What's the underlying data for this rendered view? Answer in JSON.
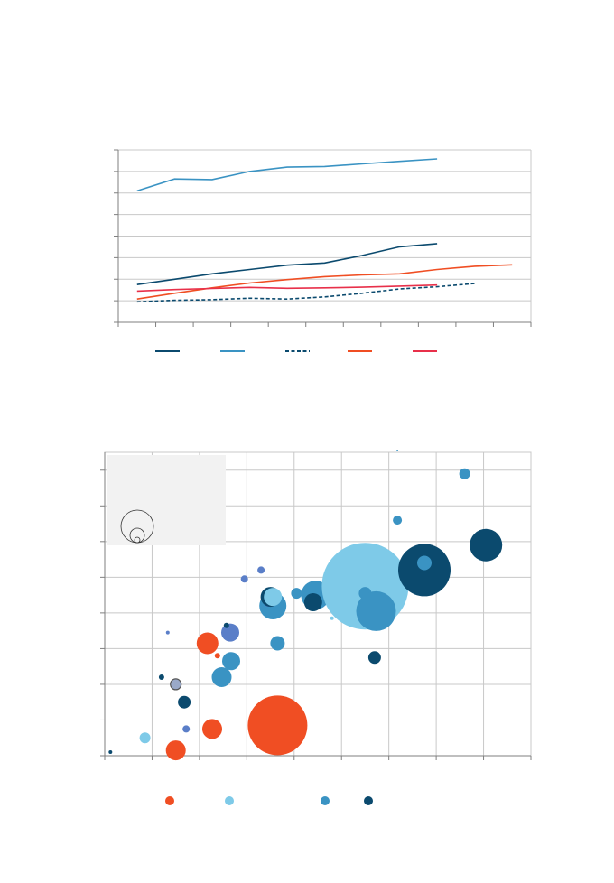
{
  "colors": {
    "navy": "#0b4a6e",
    "teal": "#3a93c3",
    "sky": "#7ecae8",
    "blue": "#5a7ec8",
    "orange": "#f04e23",
    "red": "#e8304a",
    "grid": "#c8c8c8",
    "axis": "#7f7f7f",
    "inset_bg": "#f2f2f2"
  },
  "chart_data": [
    {
      "type": "line",
      "title": "",
      "xlabel": "",
      "ylabel": "",
      "x": [
        0,
        1,
        2,
        3,
        4,
        5,
        6,
        7,
        8,
        9,
        10
      ],
      "xlim": [
        -0.5,
        10.5
      ],
      "ylim": [
        0,
        8
      ],
      "grid": true,
      "legend_position": "bottom",
      "series": [
        {
          "color": "navy",
          "dash": false,
          "values": [
            1.75,
            2.0,
            2.25,
            2.45,
            2.65,
            2.75,
            3.1,
            3.5,
            3.65,
            null,
            null
          ]
        },
        {
          "color": "teal",
          "dash": false,
          "values": [
            6.1,
            6.65,
            6.62,
            7.0,
            7.2,
            7.23,
            7.35,
            7.47,
            7.58,
            null,
            null
          ]
        },
        {
          "color": "navy",
          "dash": true,
          "values": [
            0.95,
            1.02,
            1.05,
            1.12,
            1.08,
            1.18,
            1.35,
            1.55,
            1.65,
            1.8,
            null
          ]
        },
        {
          "color": "orange",
          "dash": false,
          "values": [
            1.08,
            1.35,
            1.6,
            1.82,
            1.98,
            2.12,
            2.2,
            2.25,
            2.45,
            2.6,
            2.67
          ]
        },
        {
          "color": "red",
          "dash": false,
          "values": [
            1.45,
            1.52,
            1.57,
            1.62,
            1.58,
            1.6,
            1.63,
            1.68,
            1.73,
            null,
            null
          ]
        }
      ]
    },
    {
      "type": "scatter",
      "title": "",
      "xlabel": "",
      "ylabel": "",
      "xlim": [
        0,
        9
      ],
      "ylim": [
        0,
        8.5
      ],
      "grid": true,
      "legend_position": "bottom",
      "size_legend": [
        3,
        8,
        18
      ],
      "points": [
        {
          "x": 0.12,
          "y": 0.1,
          "r": 2,
          "color": "navy"
        },
        {
          "x": 0.85,
          "y": 0.5,
          "r": 6,
          "color": "sky"
        },
        {
          "x": 1.5,
          "y": 0.15,
          "r": 11,
          "color": "orange"
        },
        {
          "x": 1.72,
          "y": 0.75,
          "r": 4,
          "color": "blue"
        },
        {
          "x": 2.27,
          "y": 0.75,
          "r": 11,
          "color": "orange"
        },
        {
          "x": 3.65,
          "y": 0.85,
          "r": 33,
          "color": "orange"
        },
        {
          "x": 1.68,
          "y": 1.5,
          "r": 7,
          "color": "navy"
        },
        {
          "x": 1.5,
          "y": 2.0,
          "r": 6,
          "color": "navy",
          "outline": true
        },
        {
          "x": 1.2,
          "y": 2.2,
          "r": 3,
          "color": "navy"
        },
        {
          "x": 2.47,
          "y": 2.2,
          "r": 11,
          "color": "teal"
        },
        {
          "x": 2.67,
          "y": 2.65,
          "r": 10,
          "color": "teal"
        },
        {
          "x": 2.38,
          "y": 2.8,
          "r": 3,
          "color": "orange"
        },
        {
          "x": 2.17,
          "y": 3.15,
          "r": 12,
          "color": "orange"
        },
        {
          "x": 1.33,
          "y": 3.45,
          "r": 2,
          "color": "blue"
        },
        {
          "x": 2.65,
          "y": 3.45,
          "r": 10,
          "color": "blue"
        },
        {
          "x": 2.57,
          "y": 3.65,
          "r": 3,
          "color": "navy"
        },
        {
          "x": 3.65,
          "y": 3.15,
          "r": 8,
          "color": "teal"
        },
        {
          "x": 3.55,
          "y": 4.2,
          "r": 15,
          "color": "teal"
        },
        {
          "x": 3.45,
          "y": 4.3,
          "r": 5,
          "color": "blue"
        },
        {
          "x": 3.5,
          "y": 4.45,
          "r": 11,
          "color": "navy"
        },
        {
          "x": 3.55,
          "y": 4.45,
          "r": 10,
          "color": "sky"
        },
        {
          "x": 3.3,
          "y": 5.2,
          "r": 4,
          "color": "blue"
        },
        {
          "x": 2.95,
          "y": 4.95,
          "r": 4,
          "color": "blue"
        },
        {
          "x": 4.05,
          "y": 4.55,
          "r": 6,
          "color": "teal"
        },
        {
          "x": 4.45,
          "y": 4.5,
          "r": 16,
          "color": "teal"
        },
        {
          "x": 4.4,
          "y": 4.3,
          "r": 10,
          "color": "navy"
        },
        {
          "x": 4.8,
          "y": 3.85,
          "r": 2,
          "color": "sky"
        },
        {
          "x": 5.5,
          "y": 4.75,
          "r": 48,
          "color": "sky"
        },
        {
          "x": 5.5,
          "y": 4.55,
          "r": 7,
          "color": "teal"
        },
        {
          "x": 5.73,
          "y": 4.05,
          "r": 22,
          "color": "teal"
        },
        {
          "x": 5.7,
          "y": 2.75,
          "r": 7,
          "color": "navy"
        },
        {
          "x": 6.18,
          "y": 6.6,
          "r": 5,
          "color": "teal"
        },
        {
          "x": 6.18,
          "y": 8.55,
          "r": 1,
          "color": "teal"
        },
        {
          "x": 6.75,
          "y": 5.2,
          "r": 29,
          "color": "navy"
        },
        {
          "x": 6.75,
          "y": 5.4,
          "r": 8,
          "color": "teal"
        },
        {
          "x": 7.6,
          "y": 7.9,
          "r": 6,
          "color": "teal"
        },
        {
          "x": 8.05,
          "y": 5.9,
          "r": 18,
          "color": "navy"
        }
      ],
      "legend": [
        "orange",
        "sky",
        "teal",
        "navy"
      ]
    }
  ]
}
